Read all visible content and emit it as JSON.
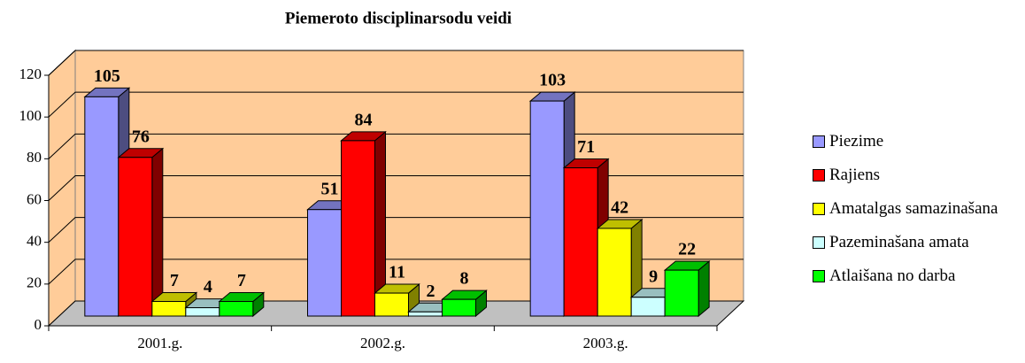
{
  "chart_data": {
    "type": "bar3d",
    "title": "Piemeroto disciplinarsodu veidi",
    "categories": [
      "2001.g.",
      "2002.g.",
      "2003.g."
    ],
    "series": [
      {
        "name": "Piezime",
        "color": "#9999ff",
        "values": [
          105,
          51,
          103
        ]
      },
      {
        "name": "Rajiens",
        "color": "#ff0000",
        "values": [
          76,
          84,
          71
        ]
      },
      {
        "name": "Amatalgas samazinašana",
        "color": "#ffff00",
        "values": [
          7,
          11,
          42
        ]
      },
      {
        "name": "Pazeminašana amata",
        "color": "#ccffff",
        "values": [
          4,
          2,
          9
        ]
      },
      {
        "name": "Atlaišana no darba",
        "color": "#00ff00",
        "values": [
          7,
          8,
          22
        ]
      }
    ],
    "ylim": [
      0,
      120
    ],
    "yticks": [
      0,
      20,
      40,
      60,
      80,
      100,
      120
    ],
    "grid": true,
    "legend": "right"
  }
}
